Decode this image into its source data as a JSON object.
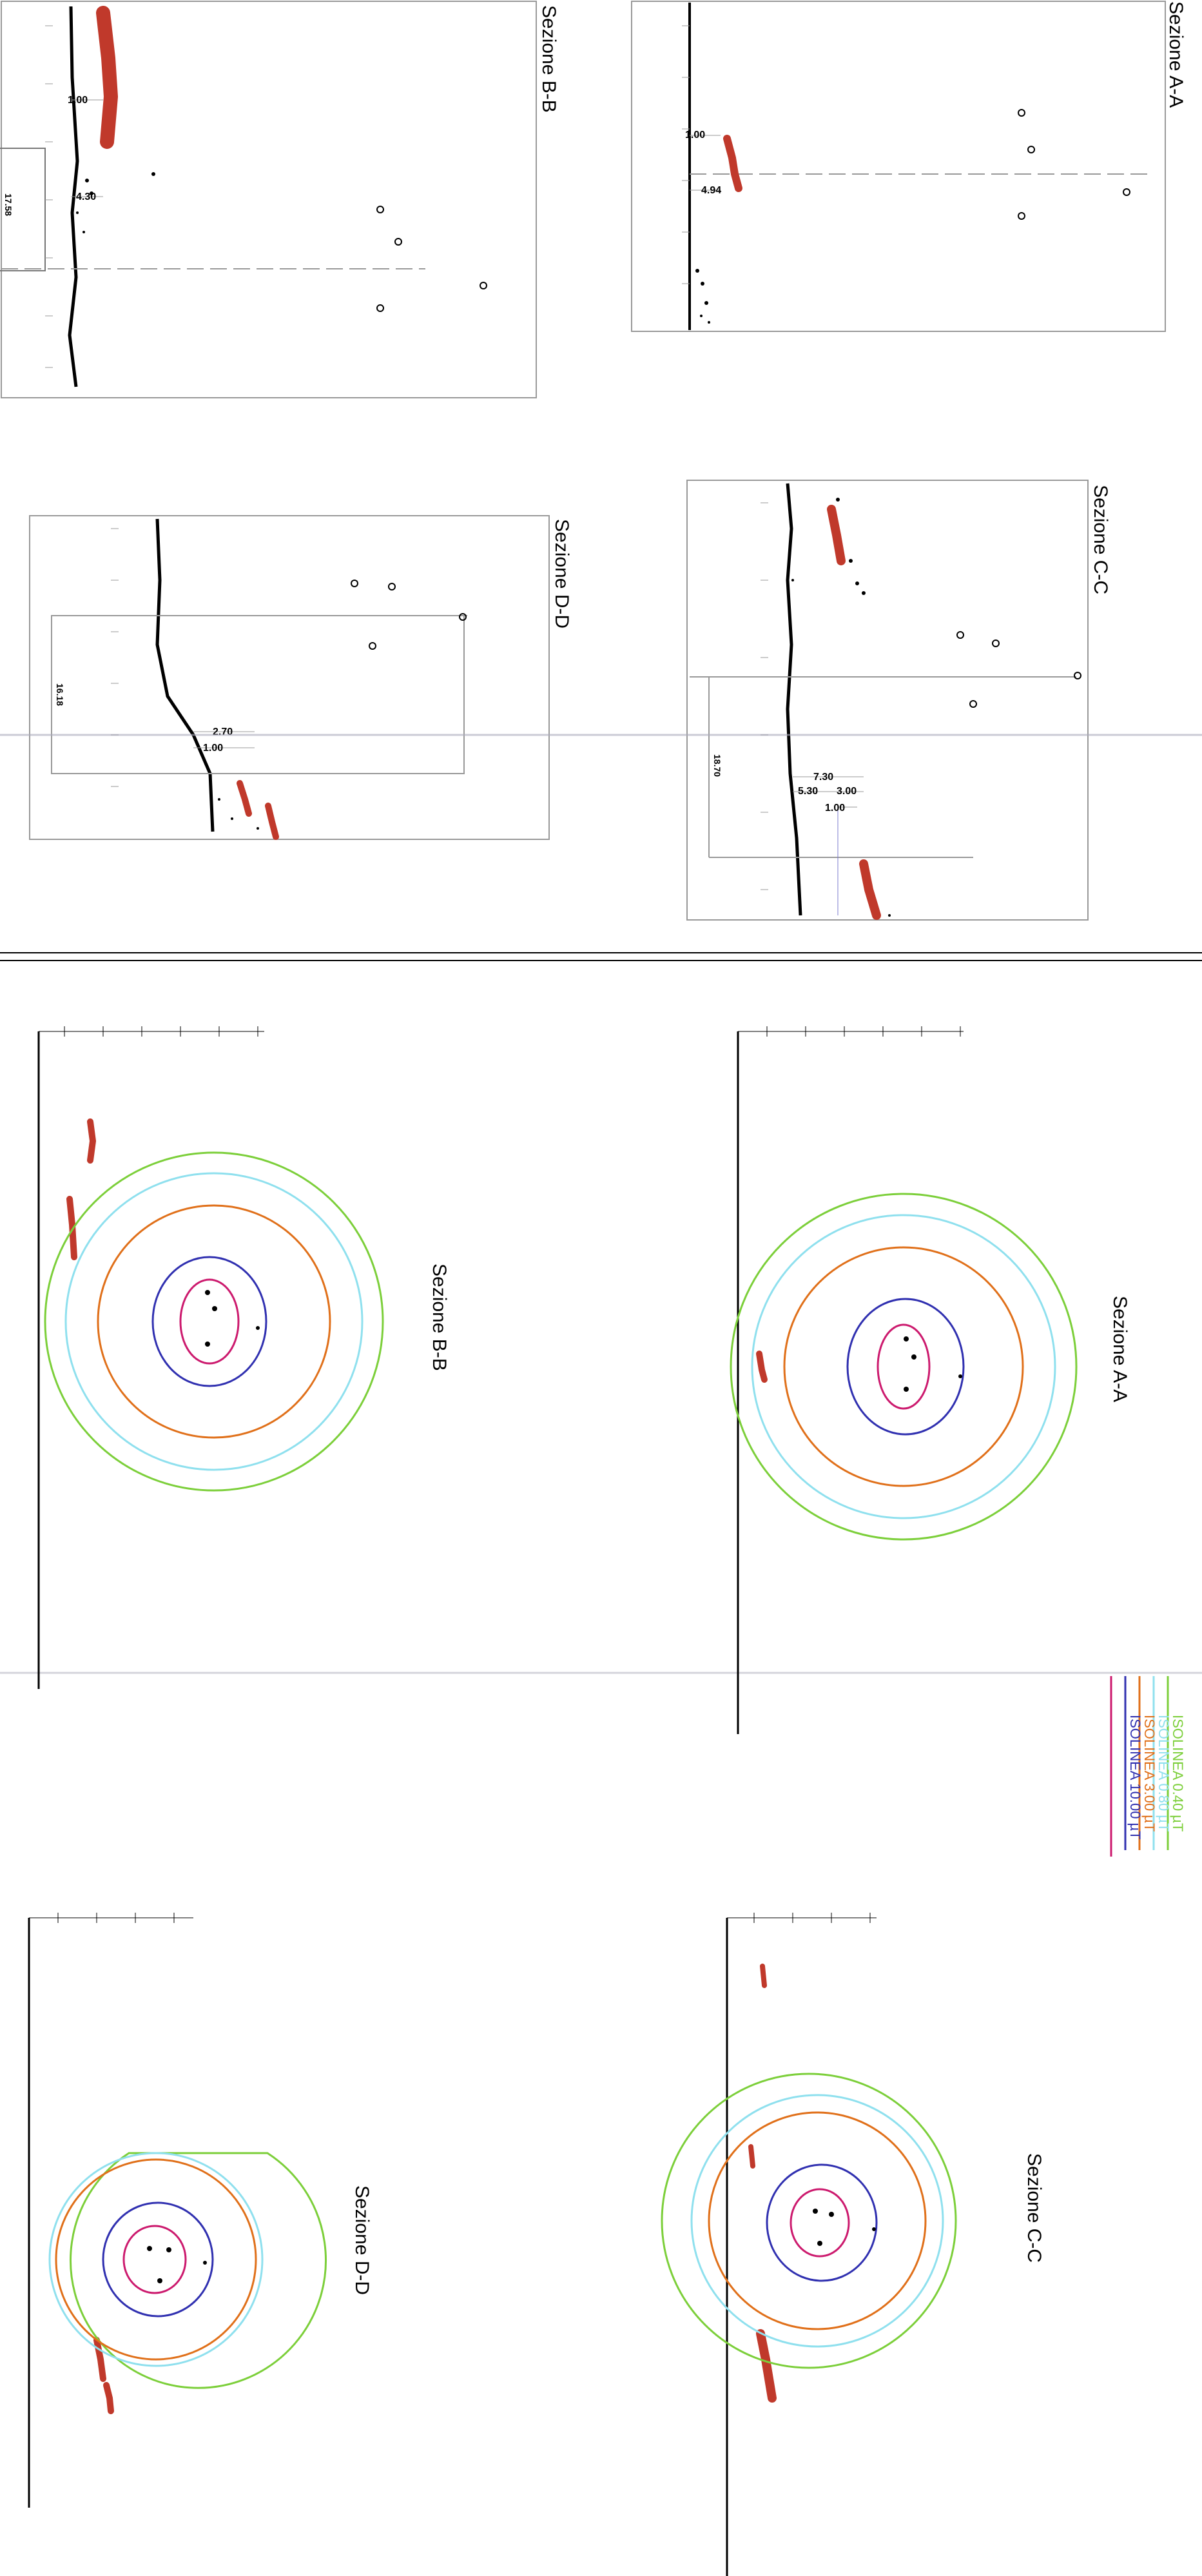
{
  "sections_top": [
    {
      "id": "A-A",
      "title": "Sezione A-A",
      "labels": [
        "1.00",
        "4.94"
      ]
    },
    {
      "id": "B-B",
      "title": "Sezione B-B",
      "labels": [
        "1.00",
        "4.30",
        "17.58"
      ]
    },
    {
      "id": "C-C",
      "title": "Sezione C-C",
      "labels": [
        "7.30",
        "5.30",
        "3.00",
        "1.00",
        "18.70"
      ]
    },
    {
      "id": "D-D",
      "title": "Sezione D-D",
      "labels": [
        "2.70",
        "1.00",
        "16.18"
      ]
    }
  ],
  "sections_bottom": [
    {
      "id": "A-A",
      "title": "Sezione A-A"
    },
    {
      "id": "B-B",
      "title": "Sezione B-B"
    },
    {
      "id": "C-C",
      "title": "Sezione C-C"
    },
    {
      "id": "D-D",
      "title": "Sezione D-D"
    }
  ],
  "legend": [
    {
      "label": "ISOLINEA 0.40 µT",
      "color": "#7ccf3a"
    },
    {
      "label": "ISOLINEA 0.80 µT",
      "color": "#8fe0ee"
    },
    {
      "label": "ISOLINEA 3.00 µT",
      "color": "#e0701a"
    },
    {
      "label": "ISOLINEA 10.00 µT",
      "color": "#3030b0"
    }
  ],
  "innermost_isoline_color": "#cc1a6e",
  "terrain_color": "#c0392b",
  "vegetation_color": "#b8dca0"
}
